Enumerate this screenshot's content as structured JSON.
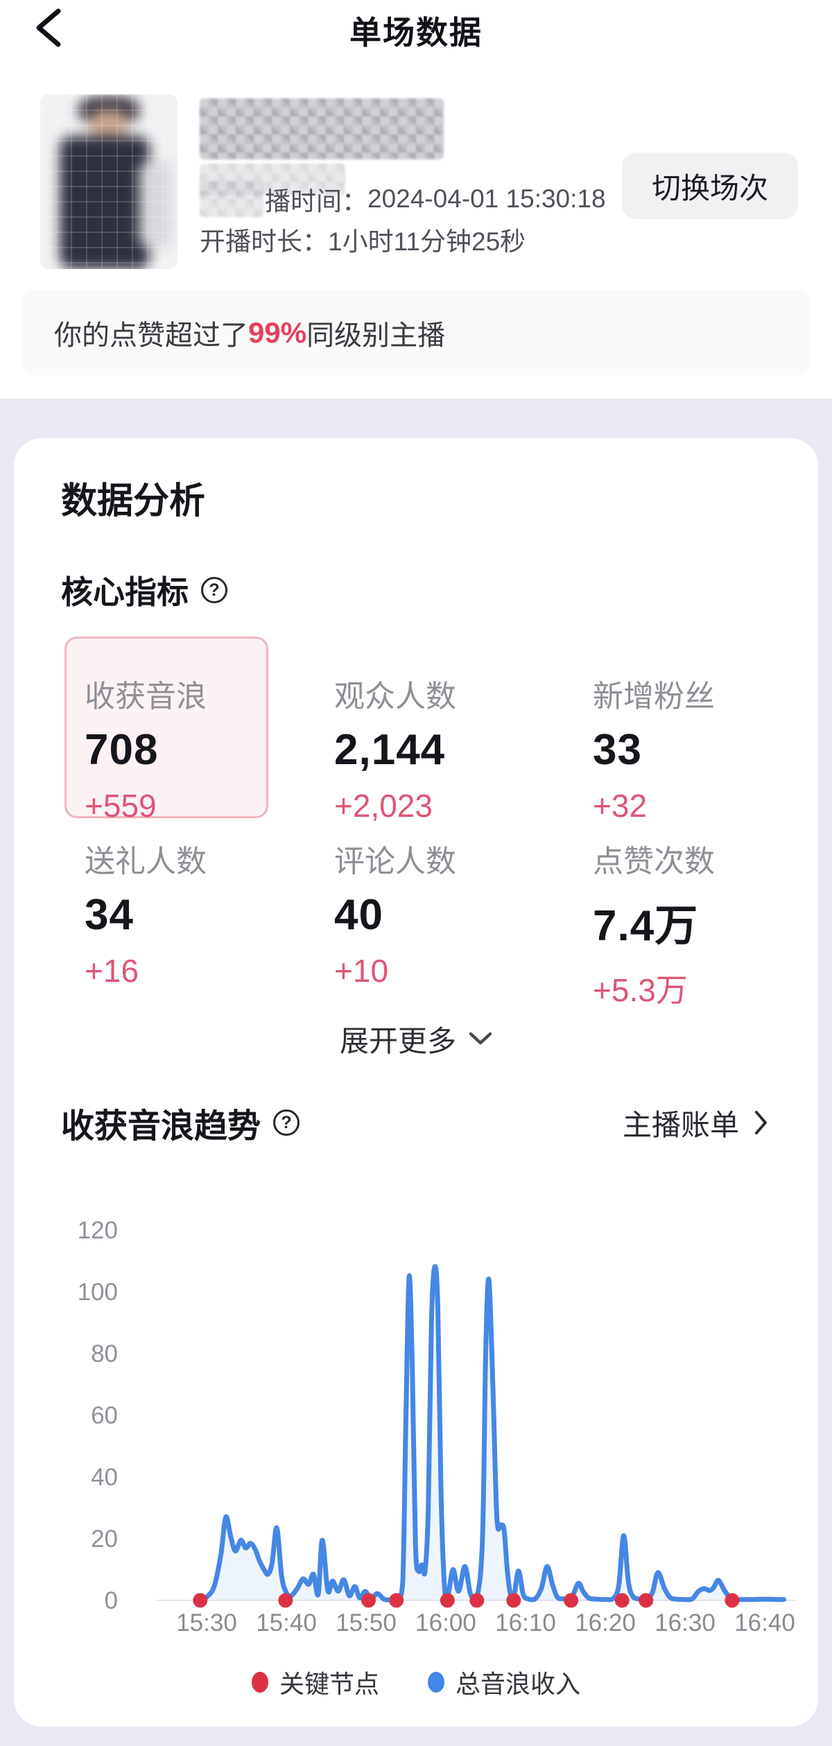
{
  "header": {
    "title": "单场数据",
    "back_icon": "chevron-left-icon"
  },
  "profile": {
    "avatar": "blurred-host-photo",
    "name": "mosaic-censored",
    "live_time_label": "播时间：",
    "live_time_value": "2024-04-01 15:30:18",
    "duration_label": "开播时长：",
    "duration_value": "1小时11分钟25秒",
    "switch_button_label": "切换场次"
  },
  "banner": {
    "prefix": "你的点赞超过了 ",
    "highlight": "99%",
    "suffix": " 同级别主播"
  },
  "analysis": {
    "section_title": "数据分析",
    "core_metrics_title": "核心指标",
    "help_icon": "question-mark-circle-icon",
    "metrics": [
      {
        "label": "收获音浪",
        "value": "708",
        "delta": "+559",
        "selected": true
      },
      {
        "label": "观众人数",
        "value": "2,144",
        "delta": "+2,023",
        "selected": false
      },
      {
        "label": "新增粉丝",
        "value": "33",
        "delta": "+32",
        "selected": false
      },
      {
        "label": "送礼人数",
        "value": "34",
        "delta": "+16",
        "selected": false
      },
      {
        "label": "评论人数",
        "value": "40",
        "delta": "+10",
        "selected": false
      },
      {
        "label": "点赞次数",
        "value": "7.4万",
        "delta": "+5.3万",
        "selected": false
      }
    ],
    "expand_more_label": "展开更多",
    "trend_title": "收获音浪趋势",
    "bill_link_label": "主播账单"
  },
  "colors": {
    "accent_red": "#e5405b",
    "delta_rose": "#dd5674",
    "line_blue": "#4587e4",
    "area_blue": "rgba(69,135,228,0.09)",
    "key_node_red": "#dc3145",
    "selected_border": "#f2b3c0",
    "selected_bg": "#fcf2f4"
  },
  "chart_data": {
    "type": "line",
    "title": "收获音浪趋势",
    "xlabel": "",
    "ylabel": "",
    "ylim": [
      0,
      120
    ],
    "y_ticks": [
      0,
      20,
      40,
      60,
      80,
      100,
      120
    ],
    "x_ticks": [
      "15:30",
      "15:40",
      "15:50",
      "16:00",
      "16:10",
      "16:20",
      "16:30",
      "16:40"
    ],
    "x_tick_minutes": [
      0,
      10,
      20,
      30,
      40,
      50,
      60,
      70
    ],
    "grid": false,
    "legend_position": "bottom",
    "series": [
      {
        "name": "总音浪收入",
        "color": "#4587e4",
        "x_unit": "minutes_after_15:30",
        "points": [
          [
            -0.8,
            0
          ],
          [
            0.2,
            1.5
          ],
          [
            1.0,
            5
          ],
          [
            1.8,
            15
          ],
          [
            2.4,
            27
          ],
          [
            3.0,
            21
          ],
          [
            3.6,
            16
          ],
          [
            4.3,
            19.5
          ],
          [
            4.9,
            17
          ],
          [
            5.5,
            18.5
          ],
          [
            6.1,
            16.5
          ],
          [
            6.6,
            13
          ],
          [
            7.2,
            10
          ],
          [
            7.7,
            8.5
          ],
          [
            8.2,
            12
          ],
          [
            8.8,
            23.5
          ],
          [
            9.4,
            8
          ],
          [
            10.0,
            2.5
          ],
          [
            10.6,
            1.5
          ],
          [
            11.4,
            4
          ],
          [
            12.1,
            7
          ],
          [
            12.8,
            5.2
          ],
          [
            13.4,
            8.5
          ],
          [
            14.0,
            2
          ],
          [
            14.5,
            19.5
          ],
          [
            15.2,
            3.2
          ],
          [
            15.8,
            6.3
          ],
          [
            16.5,
            3
          ],
          [
            17.2,
            6.7
          ],
          [
            17.9,
            1.5
          ],
          [
            18.6,
            4.5
          ],
          [
            19.2,
            0.8
          ],
          [
            19.9,
            2.9
          ],
          [
            20.6,
            0.4
          ],
          [
            21.4,
            2.2
          ],
          [
            22.3,
            0.3
          ],
          [
            23.3,
            0.3
          ],
          [
            24.0,
            0.4
          ],
          [
            24.6,
            6
          ],
          [
            25.0,
            60
          ],
          [
            25.4,
            105
          ],
          [
            25.8,
            75
          ],
          [
            26.2,
            18
          ],
          [
            26.6,
            9.5
          ],
          [
            27.0,
            11.5
          ],
          [
            27.4,
            9.5
          ],
          [
            27.8,
            30
          ],
          [
            28.2,
            90
          ],
          [
            28.6,
            108
          ],
          [
            29.0,
            95
          ],
          [
            29.4,
            35
          ],
          [
            29.8,
            6
          ],
          [
            30.2,
            0.6
          ],
          [
            30.9,
            10
          ],
          [
            31.6,
            3
          ],
          [
            32.4,
            11
          ],
          [
            33.1,
            2
          ],
          [
            33.9,
            0.8
          ],
          [
            34.6,
            20
          ],
          [
            35.0,
            80
          ],
          [
            35.4,
            104
          ],
          [
            35.9,
            70
          ],
          [
            36.4,
            27
          ],
          [
            36.9,
            24.5
          ],
          [
            37.3,
            23
          ],
          [
            37.7,
            10
          ],
          [
            38.1,
            2
          ],
          [
            38.5,
            0.6
          ],
          [
            39.1,
            9.5
          ],
          [
            39.7,
            2
          ],
          [
            40.3,
            0.5
          ],
          [
            41.2,
            0.5
          ],
          [
            42.0,
            4
          ],
          [
            42.7,
            11
          ],
          [
            43.4,
            5
          ],
          [
            44.0,
            1
          ],
          [
            44.8,
            0.5
          ],
          [
            45.7,
            0.4
          ],
          [
            46.6,
            5.5
          ],
          [
            47.2,
            3
          ],
          [
            47.9,
            0.8
          ],
          [
            48.9,
            0.4
          ],
          [
            50.0,
            0.3
          ],
          [
            51.0,
            0.6
          ],
          [
            51.7,
            5
          ],
          [
            52.3,
            21
          ],
          [
            52.9,
            6
          ],
          [
            53.4,
            1.5
          ],
          [
            54.1,
            0.5
          ],
          [
            55.1,
            0.4
          ],
          [
            55.9,
            2.5
          ],
          [
            56.6,
            9
          ],
          [
            57.4,
            4
          ],
          [
            58.1,
            1
          ],
          [
            58.9,
            0.4
          ],
          [
            59.9,
            0.3
          ],
          [
            60.9,
            0.5
          ],
          [
            61.7,
            3
          ],
          [
            62.4,
            3.8
          ],
          [
            63.1,
            3.2
          ],
          [
            63.6,
            4.2
          ],
          [
            64.2,
            6.5
          ],
          [
            65.0,
            3
          ],
          [
            65.9,
            0.4
          ],
          [
            67.2,
            0.3
          ],
          [
            68.6,
            0.3
          ],
          [
            70.1,
            0.4
          ],
          [
            71.6,
            0.3
          ],
          [
            72.4,
            0.3
          ]
        ]
      }
    ],
    "key_nodes": {
      "name": "关键节点",
      "color": "#dc3145",
      "minutes": [
        -0.8,
        9.9,
        20.3,
        23.8,
        30.2,
        33.9,
        38.5,
        45.7,
        52.1,
        55.1,
        65.9
      ]
    },
    "legend": [
      {
        "label": "关键节点",
        "color": "#dc3145"
      },
      {
        "label": "总音浪收入",
        "color": "#3f87e8"
      }
    ]
  }
}
